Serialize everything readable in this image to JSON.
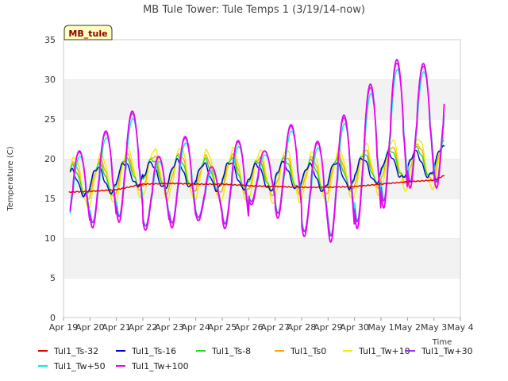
{
  "chart_data": {
    "type": "line",
    "title": "MB Tule Tower: Tule Temps 1 (3/19/14-now)",
    "xlabel": "Time",
    "ylabel": "Temperature (C)",
    "site_label": "MB_tule",
    "x_ticks": [
      "Apr 19",
      "Apr 20",
      "Apr 21",
      "Apr 22",
      "Apr 23",
      "Apr 24",
      "Apr 25",
      "Apr 26",
      "Apr 27",
      "Apr 28",
      "Apr 29",
      "Apr 30",
      "May 1",
      "May 2",
      "May 3",
      "May 4"
    ],
    "xlim": [
      0,
      15
    ],
    "ylim": [
      0,
      35
    ],
    "y_ticks": [
      0,
      5,
      10,
      15,
      20,
      25,
      30,
      35
    ],
    "grid": "horizontal bands",
    "legend_position": "bottom",
    "series": [
      {
        "name": "Tul1_Ts-32",
        "color": "#dd0000",
        "kind": "ts32"
      },
      {
        "name": "Tul1_Ts-16",
        "color": "#0000cc",
        "kind": "ts16"
      },
      {
        "name": "Tul1_Ts-8",
        "color": "#22dd22",
        "kind": "ts8"
      },
      {
        "name": "Tul1_Ts0",
        "color": "#ffa500",
        "kind": "ts0"
      },
      {
        "name": "Tul1_Tw+10",
        "color": "#eeee00",
        "kind": "tw10"
      },
      {
        "name": "Tul1_Tw+30",
        "color": "#9933ee",
        "kind": "tw30"
      },
      {
        "name": "Tul1_Tw+50",
        "color": "#00eeee",
        "kind": "tw50"
      },
      {
        "name": "Tul1_Tw+100",
        "color": "#ee00ee",
        "kind": "tw100"
      }
    ],
    "daily_max": [
      21,
      23.5,
      26,
      20.3,
      22.8,
      19,
      22.3,
      21,
      24.3,
      22.2,
      25.5,
      29.4,
      32.5,
      32
    ],
    "daily_min": [
      10.8,
      11.3,
      12,
      11,
      11.3,
      12.2,
      11.2,
      14.2,
      12.5,
      10.2,
      9.5,
      11.2,
      13.8,
      16.3
    ],
    "ts32_points": [
      [
        0.2,
        15.8
      ],
      [
        1,
        15.9
      ],
      [
        2,
        16.1
      ],
      [
        3,
        16.8
      ],
      [
        4,
        16.9
      ],
      [
        5,
        16.8
      ],
      [
        6,
        16.8
      ],
      [
        7,
        16.6
      ],
      [
        8,
        16.5
      ],
      [
        9,
        16.4
      ],
      [
        10,
        16.4
      ],
      [
        11,
        16.5
      ],
      [
        12,
        16.8
      ],
      [
        13,
        17.1
      ],
      [
        14,
        17.3
      ],
      [
        14.4,
        17.9
      ]
    ]
  }
}
